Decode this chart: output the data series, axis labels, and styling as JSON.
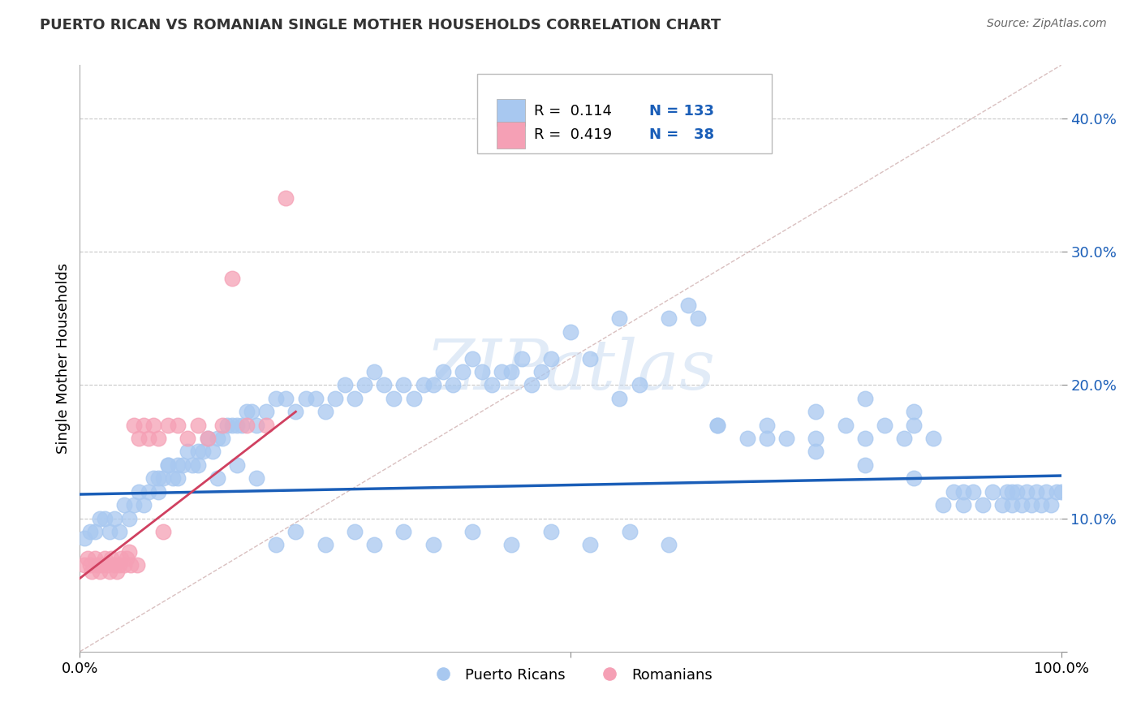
{
  "title": "PUERTO RICAN VS ROMANIAN SINGLE MOTHER HOUSEHOLDS CORRELATION CHART",
  "source": "Source: ZipAtlas.com",
  "ylabel": "Single Mother Households",
  "xlim": [
    0.0,
    1.0
  ],
  "ylim": [
    0.0,
    0.44
  ],
  "yticks": [
    0.0,
    0.1,
    0.2,
    0.3,
    0.4
  ],
  "ytick_labels": [
    "",
    "10.0%",
    "20.0%",
    "30.0%",
    "40.0%"
  ],
  "legend_r_blue": "0.114",
  "legend_n_blue": "133",
  "legend_r_pink": "0.419",
  "legend_n_pink": "38",
  "blue_color": "#a8c8f0",
  "pink_color": "#f5a0b5",
  "blue_line_color": "#1a5eb8",
  "pink_line_color": "#d04060",
  "diag_line_color": "#d0b0b0",
  "grid_color": "#c8c8c8",
  "text_blue": "#1a5eb8",
  "watermark_color": "#c5d8f0",
  "watermark_text": "ZIPatlas",
  "blue_x": [
    0.005,
    0.01,
    0.015,
    0.02,
    0.025,
    0.03,
    0.035,
    0.04,
    0.045,
    0.05,
    0.055,
    0.06,
    0.065,
    0.07,
    0.075,
    0.08,
    0.085,
    0.09,
    0.095,
    0.1,
    0.105,
    0.11,
    0.115,
    0.12,
    0.125,
    0.13,
    0.135,
    0.14,
    0.145,
    0.15,
    0.155,
    0.16,
    0.165,
    0.17,
    0.175,
    0.18,
    0.19,
    0.2,
    0.21,
    0.22,
    0.23,
    0.24,
    0.25,
    0.26,
    0.27,
    0.28,
    0.29,
    0.3,
    0.31,
    0.32,
    0.33,
    0.34,
    0.35,
    0.36,
    0.37,
    0.38,
    0.39,
    0.4,
    0.41,
    0.42,
    0.43,
    0.44,
    0.45,
    0.46,
    0.47,
    0.48,
    0.5,
    0.52,
    0.55,
    0.57,
    0.6,
    0.62,
    0.63,
    0.65,
    0.68,
    0.7,
    0.72,
    0.75,
    0.78,
    0.8,
    0.82,
    0.84,
    0.85,
    0.87,
    0.88,
    0.89,
    0.9,
    0.91,
    0.92,
    0.93,
    0.94,
    0.945,
    0.95,
    0.955,
    0.96,
    0.965,
    0.97,
    0.975,
    0.98,
    0.985,
    0.99,
    0.995,
    1.0,
    0.08,
    0.09,
    0.1,
    0.12,
    0.14,
    0.16,
    0.18,
    0.2,
    0.22,
    0.25,
    0.28,
    0.3,
    0.33,
    0.36,
    0.4,
    0.44,
    0.48,
    0.52,
    0.56,
    0.6,
    0.65,
    0.7,
    0.75,
    0.8,
    0.85,
    0.9,
    0.95,
    0.75,
    0.8,
    0.85,
    0.55
  ],
  "blue_y": [
    0.085,
    0.09,
    0.09,
    0.1,
    0.1,
    0.09,
    0.1,
    0.09,
    0.11,
    0.1,
    0.11,
    0.12,
    0.11,
    0.12,
    0.13,
    0.12,
    0.13,
    0.14,
    0.13,
    0.14,
    0.14,
    0.15,
    0.14,
    0.15,
    0.15,
    0.16,
    0.15,
    0.16,
    0.16,
    0.17,
    0.17,
    0.17,
    0.17,
    0.18,
    0.18,
    0.17,
    0.18,
    0.19,
    0.19,
    0.18,
    0.19,
    0.19,
    0.18,
    0.19,
    0.2,
    0.19,
    0.2,
    0.21,
    0.2,
    0.19,
    0.2,
    0.19,
    0.2,
    0.2,
    0.21,
    0.2,
    0.21,
    0.22,
    0.21,
    0.2,
    0.21,
    0.21,
    0.22,
    0.2,
    0.21,
    0.22,
    0.24,
    0.22,
    0.19,
    0.2,
    0.25,
    0.26,
    0.25,
    0.17,
    0.16,
    0.17,
    0.16,
    0.16,
    0.17,
    0.16,
    0.17,
    0.16,
    0.17,
    0.16,
    0.11,
    0.12,
    0.11,
    0.12,
    0.11,
    0.12,
    0.11,
    0.12,
    0.11,
    0.12,
    0.11,
    0.12,
    0.11,
    0.12,
    0.11,
    0.12,
    0.11,
    0.12,
    0.12,
    0.13,
    0.14,
    0.13,
    0.14,
    0.13,
    0.14,
    0.13,
    0.08,
    0.09,
    0.08,
    0.09,
    0.08,
    0.09,
    0.08,
    0.09,
    0.08,
    0.09,
    0.08,
    0.09,
    0.08,
    0.17,
    0.16,
    0.15,
    0.14,
    0.13,
    0.12,
    0.12,
    0.18,
    0.19,
    0.18,
    0.25
  ],
  "pink_x": [
    0.005,
    0.008,
    0.01,
    0.012,
    0.015,
    0.018,
    0.02,
    0.022,
    0.025,
    0.028,
    0.03,
    0.032,
    0.035,
    0.038,
    0.04,
    0.042,
    0.045,
    0.048,
    0.05,
    0.052,
    0.055,
    0.058,
    0.06,
    0.065,
    0.07,
    0.075,
    0.08,
    0.085,
    0.09,
    0.1,
    0.11,
    0.12,
    0.13,
    0.145,
    0.155,
    0.17,
    0.19,
    0.21
  ],
  "pink_y": [
    0.065,
    0.07,
    0.065,
    0.06,
    0.07,
    0.065,
    0.06,
    0.065,
    0.07,
    0.065,
    0.06,
    0.07,
    0.065,
    0.06,
    0.065,
    0.07,
    0.065,
    0.07,
    0.075,
    0.065,
    0.17,
    0.065,
    0.16,
    0.17,
    0.16,
    0.17,
    0.16,
    0.09,
    0.17,
    0.17,
    0.16,
    0.17,
    0.16,
    0.17,
    0.28,
    0.17,
    0.17,
    0.34
  ],
  "blue_line_x": [
    0.0,
    1.0
  ],
  "blue_line_y": [
    0.118,
    0.132
  ],
  "pink_line_x": [
    0.0,
    0.22
  ],
  "pink_line_y": [
    0.055,
    0.18
  ]
}
